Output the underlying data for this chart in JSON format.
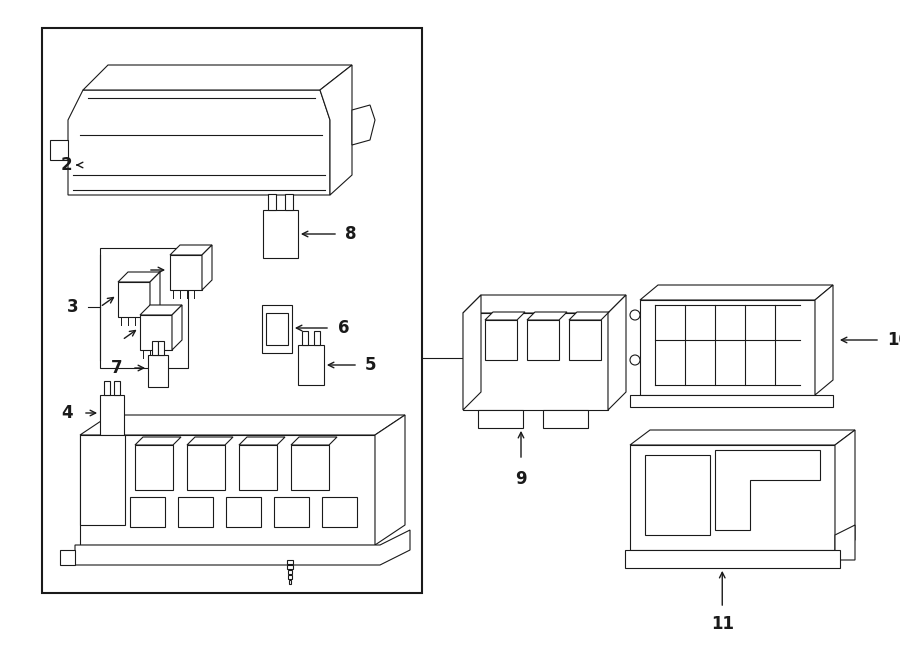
{
  "background_color": "#ffffff",
  "line_color": "#1a1a1a",
  "fig_width": 9.0,
  "fig_height": 6.61,
  "lw": 0.8
}
